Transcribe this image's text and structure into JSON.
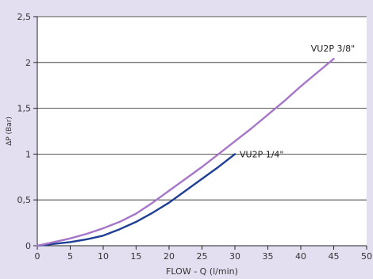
{
  "chart_data": {
    "type": "line",
    "title": "",
    "xlabel": "FLOW - Q (l/min)",
    "ylabel": "ΔP (Bar)",
    "xlim": [
      0,
      50
    ],
    "ylim": [
      0,
      2.5
    ],
    "x_ticks": [
      0,
      5,
      10,
      15,
      20,
      25,
      30,
      35,
      40,
      45,
      50
    ],
    "y_ticks": [
      0,
      0.5,
      1,
      1.5,
      2,
      2.5
    ],
    "x_tick_labels": [
      "0",
      "5",
      "10",
      "15",
      "20",
      "25",
      "30",
      "35",
      "40",
      "45",
      "50"
    ],
    "y_tick_labels": [
      "0",
      "0,5",
      "1",
      "1,5",
      "2",
      "2,5"
    ],
    "grid": "horizontal",
    "background_color": "#e3dff1",
    "plot_background_color": "#ffffff",
    "series": [
      {
        "name": "VU2P 1/4\"",
        "color": "#1f3f94",
        "x": [
          0,
          2.5,
          5,
          7.5,
          10,
          12.5,
          15,
          17.5,
          20,
          22.5,
          25,
          27.5,
          30
        ],
        "y": [
          0,
          0.02,
          0.04,
          0.07,
          0.11,
          0.18,
          0.26,
          0.36,
          0.47,
          0.6,
          0.73,
          0.86,
          1.0
        ]
      },
      {
        "name": "VU2P 3/8\"",
        "color": "#a676c9",
        "x": [
          0,
          2.5,
          5,
          7.5,
          10,
          12.5,
          15,
          17.5,
          20,
          22.5,
          25,
          27.5,
          30,
          32.5,
          35,
          37.5,
          40,
          42.5,
          45
        ],
        "y": [
          0,
          0.04,
          0.08,
          0.13,
          0.19,
          0.26,
          0.35,
          0.47,
          0.6,
          0.73,
          0.86,
          1.0,
          1.14,
          1.28,
          1.43,
          1.58,
          1.74,
          1.89,
          2.04
        ]
      }
    ]
  }
}
